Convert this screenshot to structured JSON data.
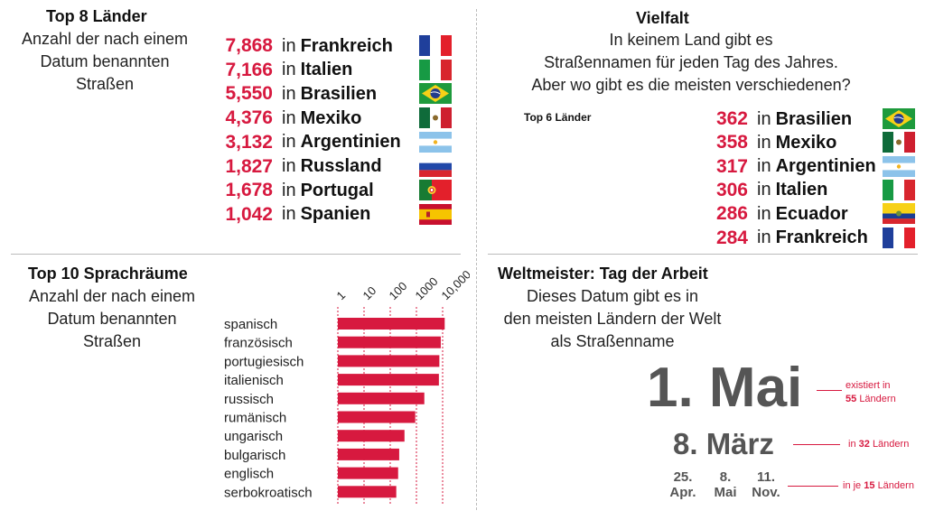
{
  "top8": {
    "title": "Top 8 Länder",
    "subtitle": [
      "Anzahl der nach einem",
      "Datum benannten",
      "Straßen"
    ],
    "in_word": "in",
    "rows": [
      {
        "value": "7,868",
        "country": "Frankreich",
        "flag": "flag-france"
      },
      {
        "value": "7,166",
        "country": "Italien",
        "flag": "flag-italy"
      },
      {
        "value": "5,550",
        "country": "Brasilien",
        "flag": "flag-brazil"
      },
      {
        "value": "4,376",
        "country": "Mexiko",
        "flag": "flag-mexico"
      },
      {
        "value": "3,132",
        "country": "Argentinien",
        "flag": "flag-argentina"
      },
      {
        "value": "1,827",
        "country": "Russland",
        "flag": "flag-russia"
      },
      {
        "value": "1,678",
        "country": "Portugal",
        "flag": "flag-portugal"
      },
      {
        "value": "1,042",
        "country": "Spanien",
        "flag": "flag-spain"
      }
    ]
  },
  "vielfalt": {
    "title": "Vielfalt",
    "subtitle": [
      "In keinem Land gibt es",
      "Straßennamen für jeden Tag des Jahres.",
      "Aber wo gibt es die meisten verschiedenen?"
    ],
    "top6_label": "Top 6 Länder",
    "in_word": "in",
    "rows": [
      {
        "value": "362",
        "country": "Brasilien",
        "flag": "flag-brazil"
      },
      {
        "value": "358",
        "country": "Mexiko",
        "flag": "flag-mexico"
      },
      {
        "value": "317",
        "country": "Argentinien",
        "flag": "flag-argentina"
      },
      {
        "value": "306",
        "country": "Italien",
        "flag": "flag-italy"
      },
      {
        "value": "286",
        "country": "Ecuador",
        "flag": "flag-ecuador"
      },
      {
        "value": "284",
        "country": "Frankreich",
        "flag": "flag-france"
      }
    ]
  },
  "sprachraeume": {
    "title": "Top 10 Sprachräume",
    "subtitle": [
      "Anzahl der nach einem",
      "Datum benannten",
      "Straßen"
    ]
  },
  "weltmeister": {
    "title": "Weltmeister: Tag der Arbeit",
    "subtitle": [
      "Dieses Datum gibt es in",
      "den meisten Ländern der Welt",
      "als Straßenname"
    ],
    "first": {
      "date": "1. Mai",
      "note_pre": "existiert in",
      "count": "55",
      "note_post": "Ländern"
    },
    "second": {
      "date": "8. März",
      "note_pre": "in",
      "count": "32",
      "note_post": "Ländern"
    },
    "third": {
      "dates": [
        {
          "day": "25.",
          "month": "Apr."
        },
        {
          "day": "8.",
          "month": "Mai"
        },
        {
          "day": "11.",
          "month": "Nov."
        }
      ],
      "note_pre": "in je",
      "count": "15",
      "note_post": "Ländern"
    }
  },
  "colors": {
    "accent": "#d7193f",
    "grid": "#d7193f",
    "date_gray": "#555555"
  },
  "chart_data": {
    "type": "bar",
    "title": "Top 10 Sprachräume",
    "orientation": "horizontal",
    "x_scale": "log",
    "xlim": [
      1,
      10000
    ],
    "tick_labels": [
      "1",
      "10",
      "100",
      "1000",
      "10,000"
    ],
    "tick_values": [
      1,
      10,
      100,
      1000,
      10000
    ],
    "categories": [
      "spanisch",
      "französisch",
      "portugiesisch",
      "italienisch",
      "russisch",
      "rumänisch",
      "ungarisch",
      "bulgarisch",
      "englisch",
      "serbokroatisch"
    ],
    "values": [
      12000,
      8500,
      7500,
      7200,
      2000,
      900,
      350,
      220,
      200,
      170
    ],
    "grid": true
  }
}
